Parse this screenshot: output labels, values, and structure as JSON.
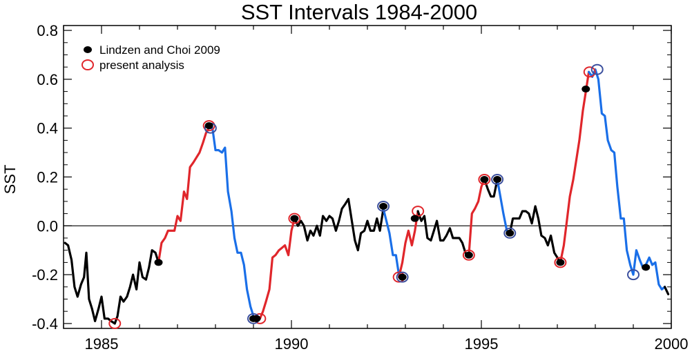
{
  "chart_data": {
    "type": "line",
    "title": "SST Intervals 1984-2000",
    "xlabel": "",
    "ylabel": "SST",
    "xlim": [
      1984,
      2000
    ],
    "ylim": [
      -0.42,
      0.82
    ],
    "zero_line": true,
    "legend_position": "top-left",
    "x_ticks": [
      1985,
      1990,
      1995,
      2000
    ],
    "x_tick_labels": [
      "1985",
      "1990",
      "1995",
      "2000"
    ],
    "y_ticks": [
      -0.4,
      -0.2,
      0.0,
      0.2,
      0.4,
      0.6,
      0.8
    ],
    "y_tick_labels": [
      "-0.4",
      "-0.2",
      "0.0",
      "0.2",
      "0.4",
      "0.6",
      "0.8"
    ],
    "legend": [
      {
        "label": "Lindzen and Choi 2009",
        "marker": "filled-dot",
        "color": "#000000"
      },
      {
        "label": "present analysis",
        "marker": "open-circle",
        "color": "#e0262b"
      }
    ],
    "colors": {
      "black": "#000000",
      "red": "#e0262b",
      "blue": "#1a6fe8",
      "open_blue": "#3b4f9e",
      "open_red": "#e0262b"
    },
    "series": [
      {
        "name": "sst",
        "color": "black",
        "points": [
          [
            1984.04,
            -0.07
          ],
          [
            1984.12,
            -0.08
          ],
          [
            1984.21,
            -0.14
          ],
          [
            1984.29,
            -0.25
          ],
          [
            1984.37,
            -0.29
          ],
          [
            1984.46,
            -0.24
          ],
          [
            1984.54,
            -0.21
          ],
          [
            1984.6,
            -0.11
          ],
          [
            1984.67,
            -0.3
          ],
          [
            1984.75,
            -0.34
          ],
          [
            1984.83,
            -0.39
          ],
          [
            1984.92,
            -0.34
          ],
          [
            1985.0,
            -0.29
          ],
          [
            1985.08,
            -0.38
          ],
          [
            1985.17,
            -0.38
          ],
          [
            1985.25,
            -0.39
          ],
          [
            1985.35,
            -0.4
          ]
        ]
      },
      {
        "name": "sst",
        "color": "black",
        "points": [
          [
            1985.35,
            -0.4
          ],
          [
            1985.42,
            -0.37
          ],
          [
            1985.5,
            -0.29
          ],
          [
            1985.58,
            -0.31
          ],
          [
            1985.67,
            -0.29
          ],
          [
            1985.75,
            -0.25
          ],
          [
            1985.83,
            -0.2
          ],
          [
            1985.92,
            -0.26
          ],
          [
            1986.0,
            -0.15
          ],
          [
            1986.08,
            -0.21
          ],
          [
            1986.17,
            -0.22
          ],
          [
            1986.25,
            -0.17
          ],
          [
            1986.33,
            -0.1
          ],
          [
            1986.42,
            -0.11
          ],
          [
            1986.5,
            -0.15
          ]
        ]
      },
      {
        "name": "sst",
        "color": "red",
        "points": [
          [
            1986.5,
            -0.15
          ],
          [
            1986.58,
            -0.07
          ],
          [
            1986.67,
            -0.05
          ],
          [
            1986.75,
            -0.02
          ],
          [
            1986.83,
            -0.02
          ],
          [
            1986.92,
            -0.02
          ],
          [
            1987.0,
            0.04
          ],
          [
            1987.08,
            0.02
          ],
          [
            1987.17,
            0.14
          ],
          [
            1987.25,
            0.11
          ],
          [
            1987.33,
            0.24
          ],
          [
            1987.42,
            0.26
          ],
          [
            1987.5,
            0.28
          ],
          [
            1987.58,
            0.3
          ],
          [
            1987.67,
            0.34
          ],
          [
            1987.75,
            0.38
          ],
          [
            1987.83,
            0.4
          ]
        ]
      },
      {
        "name": "sst",
        "color": "blue",
        "points": [
          [
            1987.83,
            0.4
          ],
          [
            1987.92,
            0.4
          ],
          [
            1988.0,
            0.31
          ],
          [
            1988.08,
            0.31
          ],
          [
            1988.17,
            0.3
          ],
          [
            1988.25,
            0.32
          ],
          [
            1988.33,
            0.14
          ],
          [
            1988.42,
            0.06
          ],
          [
            1988.5,
            -0.05
          ],
          [
            1988.58,
            -0.11
          ],
          [
            1988.67,
            -0.11
          ],
          [
            1988.75,
            -0.16
          ],
          [
            1988.83,
            -0.26
          ],
          [
            1988.92,
            -0.33
          ],
          [
            1989.0,
            -0.37
          ],
          [
            1989.08,
            -0.38
          ],
          [
            1989.17,
            -0.38
          ]
        ]
      },
      {
        "name": "sst",
        "color": "red",
        "points": [
          [
            1989.17,
            -0.38
          ],
          [
            1989.25,
            -0.35
          ],
          [
            1989.33,
            -0.31
          ],
          [
            1989.42,
            -0.26
          ],
          [
            1989.5,
            -0.13
          ],
          [
            1989.58,
            -0.12
          ],
          [
            1989.67,
            -0.1
          ],
          [
            1989.75,
            -0.09
          ],
          [
            1989.83,
            -0.08
          ],
          [
            1989.92,
            -0.12
          ],
          [
            1990.0,
            -0.02
          ],
          [
            1990.08,
            0.03
          ]
        ]
      },
      {
        "name": "sst",
        "color": "black",
        "points": [
          [
            1990.08,
            0.03
          ],
          [
            1990.17,
            0.0
          ],
          [
            1990.25,
            0.02
          ],
          [
            1990.33,
            0.0
          ],
          [
            1990.42,
            -0.06
          ],
          [
            1990.5,
            -0.02
          ],
          [
            1990.58,
            -0.04
          ],
          [
            1990.67,
            0.0
          ],
          [
            1990.75,
            -0.04
          ],
          [
            1990.83,
            0.04
          ],
          [
            1990.92,
            0.02
          ],
          [
            1991.0,
            0.04
          ],
          [
            1991.08,
            0.03
          ],
          [
            1991.17,
            -0.02
          ],
          [
            1991.25,
            0.02
          ],
          [
            1991.33,
            0.07
          ],
          [
            1991.42,
            0.09
          ],
          [
            1991.5,
            0.11
          ],
          [
            1991.58,
            0.03
          ],
          [
            1991.67,
            -0.06
          ],
          [
            1991.75,
            -0.1
          ],
          [
            1991.83,
            -0.03
          ],
          [
            1991.92,
            -0.02
          ],
          [
            1992.0,
            0.02
          ],
          [
            1992.08,
            -0.02
          ],
          [
            1992.17,
            -0.02
          ],
          [
            1992.25,
            0.03
          ],
          [
            1992.33,
            -0.02
          ],
          [
            1992.42,
            0.07
          ]
        ]
      },
      {
        "name": "sst",
        "color": "blue",
        "points": [
          [
            1992.42,
            0.07
          ],
          [
            1992.5,
            0.02
          ],
          [
            1992.58,
            -0.03
          ],
          [
            1992.67,
            -0.12
          ],
          [
            1992.75,
            -0.12
          ],
          [
            1992.83,
            -0.2
          ],
          [
            1992.92,
            -0.21
          ]
        ]
      },
      {
        "name": "sst",
        "color": "red",
        "points": [
          [
            1992.83,
            -0.21
          ],
          [
            1992.92,
            -0.15
          ],
          [
            1993.0,
            -0.07
          ],
          [
            1993.08,
            -0.02
          ],
          [
            1993.17,
            -0.08
          ],
          [
            1993.25,
            -0.02
          ],
          [
            1993.33,
            0.06
          ]
        ]
      },
      {
        "name": "sst",
        "color": "black",
        "points": [
          [
            1993.33,
            0.06
          ],
          [
            1993.42,
            0.02
          ],
          [
            1993.5,
            0.04
          ],
          [
            1993.58,
            -0.05
          ],
          [
            1993.67,
            -0.06
          ],
          [
            1993.75,
            -0.02
          ],
          [
            1993.83,
            0.02
          ],
          [
            1993.92,
            -0.06
          ],
          [
            1994.0,
            -0.06
          ],
          [
            1994.08,
            -0.04
          ],
          [
            1994.17,
            -0.01
          ],
          [
            1994.25,
            -0.05
          ],
          [
            1994.33,
            -0.05
          ],
          [
            1994.42,
            -0.05
          ],
          [
            1994.5,
            -0.07
          ],
          [
            1994.58,
            -0.11
          ],
          [
            1994.67,
            -0.12
          ]
        ]
      },
      {
        "name": "sst",
        "color": "red",
        "points": [
          [
            1994.67,
            -0.12
          ],
          [
            1994.75,
            0.05
          ],
          [
            1994.83,
            0.07
          ],
          [
            1994.92,
            0.1
          ],
          [
            1995.0,
            0.16
          ],
          [
            1995.08,
            0.19
          ]
        ]
      },
      {
        "name": "sst",
        "color": "black",
        "points": [
          [
            1995.08,
            0.19
          ],
          [
            1995.17,
            0.15
          ],
          [
            1995.25,
            0.12
          ],
          [
            1995.33,
            0.12
          ],
          [
            1995.42,
            0.19
          ]
        ]
      },
      {
        "name": "sst",
        "color": "blue",
        "points": [
          [
            1995.42,
            0.19
          ],
          [
            1995.5,
            0.12
          ],
          [
            1995.58,
            0.05
          ],
          [
            1995.67,
            -0.02
          ],
          [
            1995.75,
            -0.03
          ]
        ]
      },
      {
        "name": "sst",
        "color": "black",
        "points": [
          [
            1995.75,
            -0.03
          ],
          [
            1995.83,
            0.03
          ],
          [
            1995.92,
            0.03
          ],
          [
            1996.0,
            0.03
          ],
          [
            1996.08,
            0.06
          ],
          [
            1996.17,
            0.06
          ],
          [
            1996.25,
            0.05
          ],
          [
            1996.33,
            0.01
          ],
          [
            1996.42,
            0.08
          ],
          [
            1996.5,
            0.03
          ],
          [
            1996.58,
            -0.04
          ],
          [
            1996.67,
            -0.05
          ],
          [
            1996.75,
            -0.08
          ],
          [
            1996.83,
            -0.04
          ],
          [
            1996.92,
            -0.11
          ],
          [
            1997.0,
            -0.13
          ],
          [
            1997.08,
            -0.15
          ]
        ]
      },
      {
        "name": "sst",
        "color": "red",
        "points": [
          [
            1997.08,
            -0.15
          ],
          [
            1997.17,
            -0.08
          ],
          [
            1997.25,
            0.02
          ],
          [
            1997.33,
            0.12
          ],
          [
            1997.42,
            0.19
          ],
          [
            1997.5,
            0.27
          ],
          [
            1997.58,
            0.35
          ],
          [
            1997.67,
            0.47
          ],
          [
            1997.75,
            0.55
          ],
          [
            1997.83,
            0.63
          ]
        ]
      },
      {
        "name": "sst",
        "color": "blue",
        "points": [
          [
            1997.83,
            0.63
          ],
          [
            1997.92,
            0.61
          ],
          [
            1998.0,
            0.64
          ],
          [
            1998.08,
            0.6
          ],
          [
            1998.17,
            0.46
          ],
          [
            1998.25,
            0.45
          ],
          [
            1998.33,
            0.35
          ],
          [
            1998.42,
            0.31
          ],
          [
            1998.5,
            0.3
          ],
          [
            1998.58,
            0.16
          ],
          [
            1998.67,
            0.03
          ],
          [
            1998.75,
            0.03
          ],
          [
            1998.83,
            -0.1
          ],
          [
            1998.92,
            -0.16
          ],
          [
            1999.0,
            -0.2
          ],
          [
            1999.08,
            -0.1
          ],
          [
            1999.17,
            -0.14
          ],
          [
            1999.25,
            -0.17
          ],
          [
            1999.33,
            -0.16
          ],
          [
            1999.42,
            -0.13
          ],
          [
            1999.5,
            -0.16
          ],
          [
            1999.58,
            -0.15
          ],
          [
            1999.67,
            -0.24
          ],
          [
            1999.75,
            -0.26
          ],
          [
            1999.83,
            -0.25
          ]
        ]
      },
      {
        "name": "sst",
        "color": "black",
        "points": [
          [
            1999.83,
            -0.25
          ],
          [
            1999.92,
            -0.28
          ]
        ]
      }
    ],
    "lindzen_choi_2009_points": [
      [
        1986.5,
        -0.15
      ],
      [
        1987.83,
        0.41
      ],
      [
        1989.0,
        -0.38
      ],
      [
        1989.08,
        -0.38
      ],
      [
        1990.08,
        0.03
      ],
      [
        1992.42,
        0.08
      ],
      [
        1992.92,
        -0.21
      ],
      [
        1993.25,
        0.03
      ],
      [
        1994.67,
        -0.12
      ],
      [
        1995.08,
        0.19
      ],
      [
        1995.42,
        0.19
      ],
      [
        1995.75,
        -0.03
      ],
      [
        1997.08,
        -0.15
      ],
      [
        1997.75,
        0.56
      ],
      [
        1999.33,
        -0.17
      ]
    ],
    "present_analysis_red_circles": [
      [
        1985.35,
        -0.4
      ],
      [
        1987.83,
        0.41
      ],
      [
        1989.17,
        -0.38
      ],
      [
        1990.08,
        0.03
      ],
      [
        1992.83,
        -0.21
      ],
      [
        1993.33,
        0.06
      ],
      [
        1994.67,
        -0.12
      ],
      [
        1995.08,
        0.19
      ],
      [
        1997.08,
        -0.15
      ],
      [
        1997.85,
        0.63
      ]
    ],
    "present_analysis_blue_circles": [
      [
        1987.87,
        0.4
      ],
      [
        1989.0,
        -0.38
      ],
      [
        1992.42,
        0.08
      ],
      [
        1992.92,
        -0.21
      ],
      [
        1995.42,
        0.19
      ],
      [
        1995.75,
        -0.03
      ],
      [
        1998.05,
        0.64
      ],
      [
        1999.0,
        -0.2
      ]
    ]
  }
}
